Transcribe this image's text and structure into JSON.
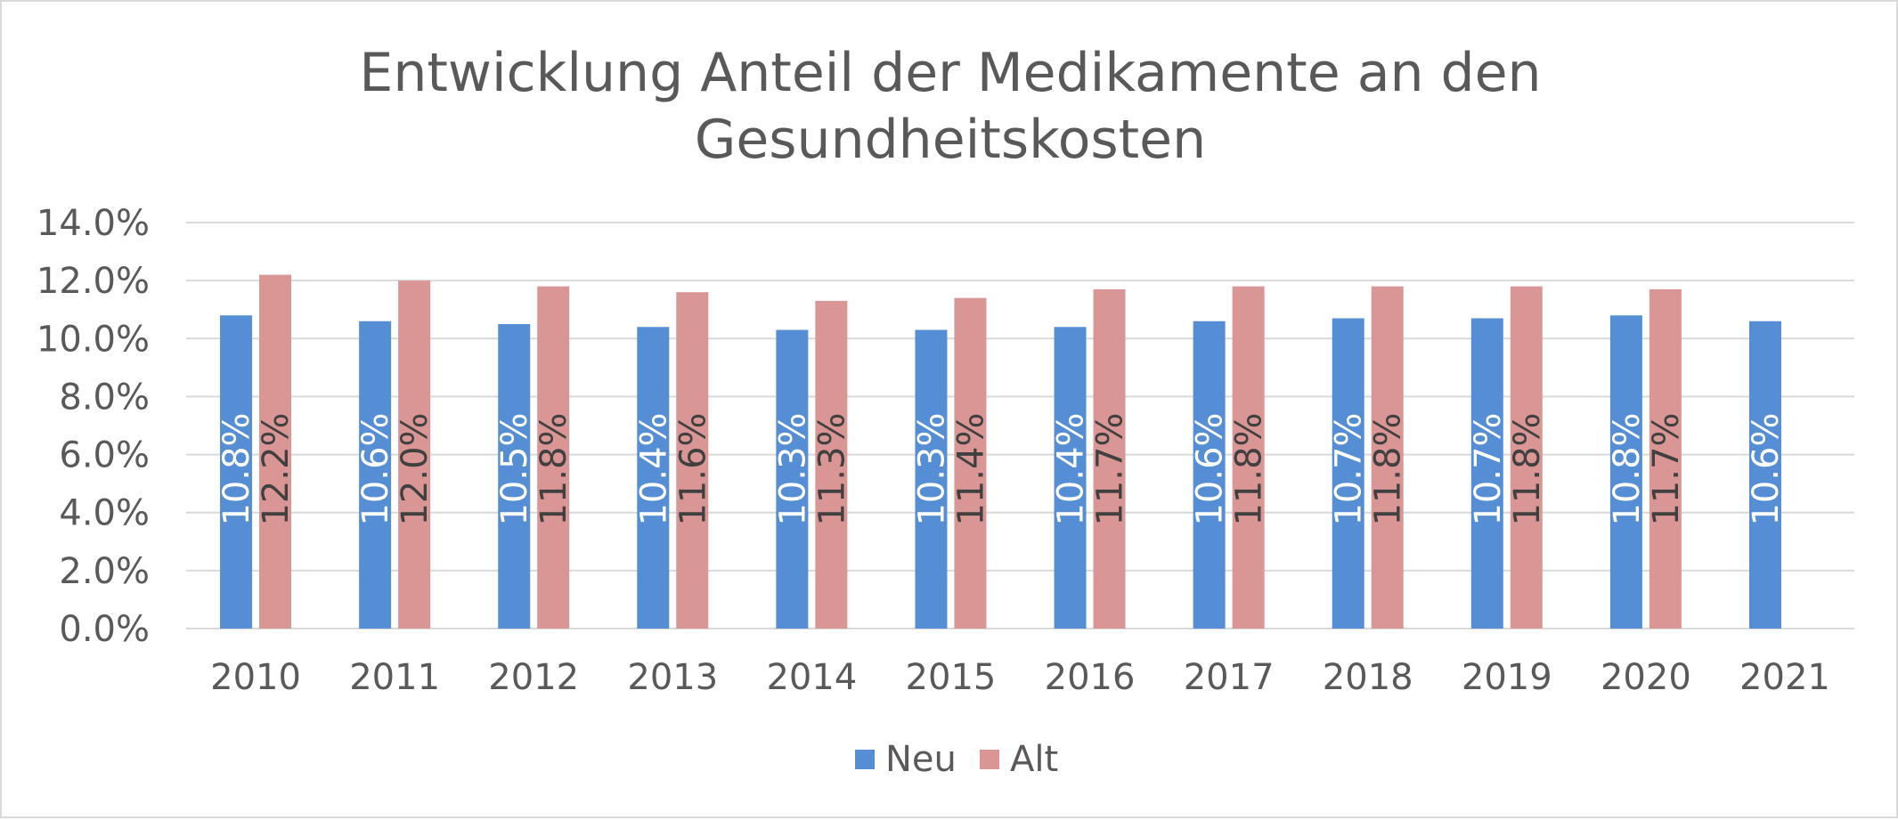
{
  "chart_data": {
    "type": "bar",
    "title_lines": [
      "Entwicklung Anteil der Medikamente an den",
      "Gesundheitskosten"
    ],
    "categories": [
      "2010",
      "2011",
      "2012",
      "2013",
      "2014",
      "2015",
      "2016",
      "2017",
      "2018",
      "2019",
      "2020",
      "2021"
    ],
    "series": [
      {
        "name": "Neu",
        "color": "#558ed5",
        "label_color": "#ffffff",
        "values": [
          10.8,
          10.6,
          10.5,
          10.4,
          10.3,
          10.3,
          10.4,
          10.6,
          10.7,
          10.7,
          10.8,
          10.6
        ],
        "labels": [
          "10.8%",
          "10.6%",
          "10.5%",
          "10.4%",
          "10.3%",
          "10.3%",
          "10.4%",
          "10.6%",
          "10.7%",
          "10.7%",
          "10.8%",
          "10.6%"
        ]
      },
      {
        "name": "Alt",
        "color": "#d99694",
        "label_color": "#404040",
        "values": [
          12.2,
          12.0,
          11.8,
          11.6,
          11.3,
          11.4,
          11.7,
          11.8,
          11.8,
          11.8,
          11.7,
          null
        ],
        "labels": [
          "12.2%",
          "12.0%",
          "11.8%",
          "11.6%",
          "11.3%",
          "11.4%",
          "11.7%",
          "11.8%",
          "11.8%",
          "11.8%",
          "11.7%",
          null
        ]
      }
    ],
    "ylim": [
      0,
      14
    ],
    "y_ticks": [
      0,
      2,
      4,
      6,
      8,
      10,
      12,
      14
    ],
    "y_tick_labels": [
      "0.0%",
      "2.0%",
      "4.0%",
      "6.0%",
      "8.0%",
      "10.0%",
      "12.0%",
      "14.0%"
    ],
    "xlabel": "",
    "ylabel": "",
    "grid": true,
    "legend_position": "bottom",
    "gridline_color": "#d9d9d9"
  }
}
